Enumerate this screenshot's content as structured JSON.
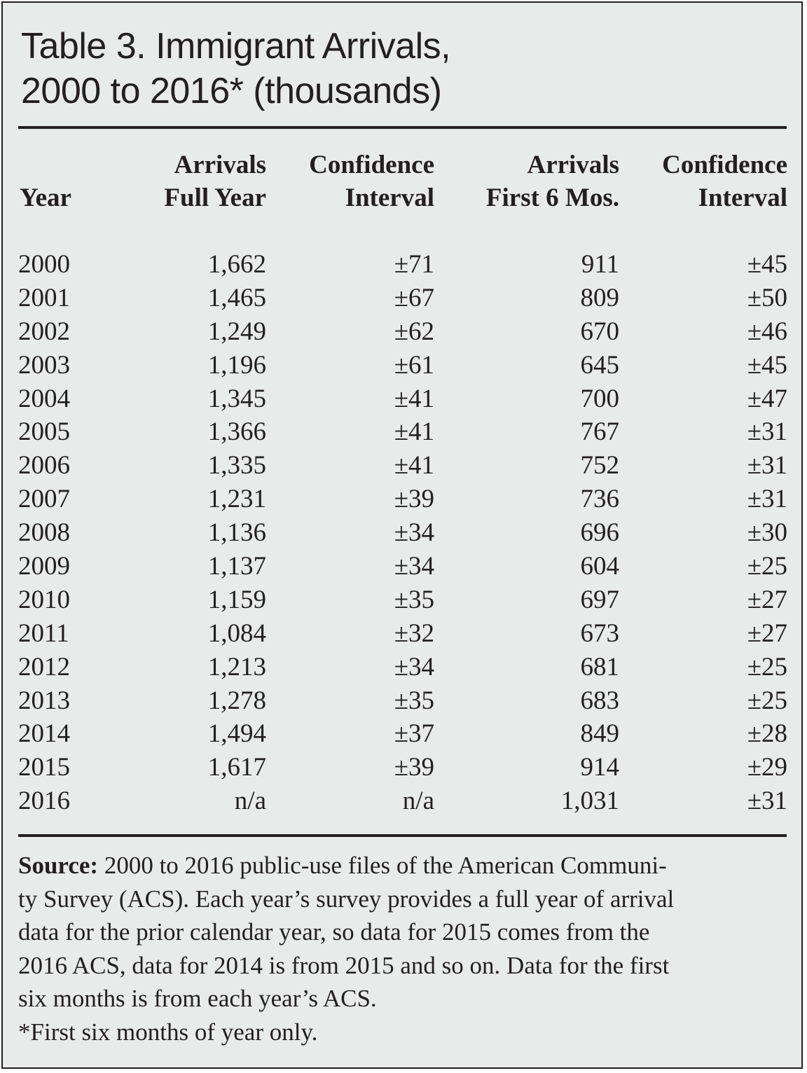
{
  "title": {
    "line1": "Table 3. Immigrant Arrivals,",
    "line2": "2000 to 2016* (thousands)"
  },
  "headers": {
    "year": "Year",
    "arrivals_full_1": "Arrivals",
    "arrivals_full_2": "Full Year",
    "ci_full_1": "Confidence",
    "ci_full_2": "Interval",
    "arrivals_half_1": "Arrivals",
    "arrivals_half_2": "First 6 Mos.",
    "ci_half_1": "Confidence",
    "ci_half_2": "Interval"
  },
  "rows": [
    {
      "year": "2000",
      "full": "1,662",
      "ci_full": "±71",
      "half": "911",
      "ci_half": "±45"
    },
    {
      "year": "2001",
      "full": "1,465",
      "ci_full": "±67",
      "half": "809",
      "ci_half": "±50"
    },
    {
      "year": "2002",
      "full": "1,249",
      "ci_full": "±62",
      "half": "670",
      "ci_half": "±46"
    },
    {
      "year": "2003",
      "full": "1,196",
      "ci_full": "±61",
      "half": "645",
      "ci_half": "±45"
    },
    {
      "year": "2004",
      "full": "1,345",
      "ci_full": "±41",
      "half": "700",
      "ci_half": "±47"
    },
    {
      "year": "2005",
      "full": "1,366",
      "ci_full": "±41",
      "half": "767",
      "ci_half": "±31"
    },
    {
      "year": "2006",
      "full": "1,335",
      "ci_full": "±41",
      "half": "752",
      "ci_half": "±31"
    },
    {
      "year": "2007",
      "full": "1,231",
      "ci_full": "±39",
      "half": "736",
      "ci_half": "±31"
    },
    {
      "year": "2008",
      "full": "1,136",
      "ci_full": "±34",
      "half": "696",
      "ci_half": "±30"
    },
    {
      "year": "2009",
      "full": "1,137",
      "ci_full": "±34",
      "half": "604",
      "ci_half": "±25"
    },
    {
      "year": "2010",
      "full": "1,159",
      "ci_full": "±35",
      "half": "697",
      "ci_half": "±27"
    },
    {
      "year": "2011",
      "full": "1,084",
      "ci_full": "±32",
      "half": "673",
      "ci_half": "±27"
    },
    {
      "year": "2012",
      "full": "1,213",
      "ci_full": "±34",
      "half": "681",
      "ci_half": "±25"
    },
    {
      "year": "2013",
      "full": "1,278",
      "ci_full": "±35",
      "half": "683",
      "ci_half": "±25"
    },
    {
      "year": "2014",
      "full": "1,494",
      "ci_full": "±37",
      "half": "849",
      "ci_half": "±28"
    },
    {
      "year": "2015",
      "full": "1,617",
      "ci_full": "±39",
      "half": "914",
      "ci_half": "±29"
    },
    {
      "year": "2016",
      "full": "n/a",
      "ci_full": "n/a",
      "half": "1,031",
      "ci_half": "±31"
    }
  ],
  "notes": {
    "source_label": "Source:",
    "source_lines": [
      " 2000 to 2016 public-use files of the American Communi-",
      "ty  Survey (ACS). Each year’s survey provides a full year of arrival",
      "data for the prior  calendar year, so data for 2015 comes from the",
      "2016 ACS, data for 2014 is from 2015 and so on.  Data for the first",
      "six months is from each year’s ACS."
    ],
    "footnote": "*First six months of year only."
  },
  "colors": {
    "background": "#e9eaea",
    "text": "#231f20"
  }
}
